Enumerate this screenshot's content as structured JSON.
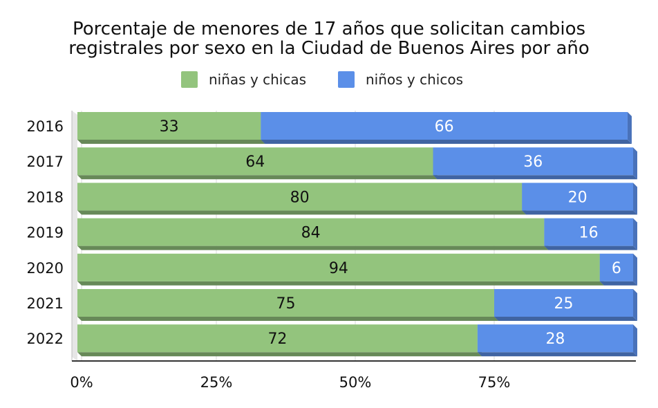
{
  "chart_data": {
    "type": "bar",
    "orientation": "horizontal",
    "stacked": true,
    "title_lines": [
      "Porcentaje de menores de 17 años que solicitan cambios",
      "registrales por sexo en la Ciudad de Buenos Aires por año"
    ],
    "categories": [
      "2016",
      "2017",
      "2018",
      "2019",
      "2020",
      "2021",
      "2022"
    ],
    "series": [
      {
        "name": "niñas y chicas",
        "color": "#93c47d",
        "values": [
          33,
          64,
          80,
          84,
          94,
          75,
          72
        ]
      },
      {
        "name": "niños y chicos",
        "color": "#5b8fe8",
        "values": [
          66,
          36,
          20,
          16,
          6,
          25,
          28
        ]
      }
    ],
    "x_ticks": [
      "0%",
      "25%",
      "50%",
      "75%"
    ],
    "xlim": [
      0,
      100
    ],
    "grid": true,
    "legend_position": "top"
  }
}
